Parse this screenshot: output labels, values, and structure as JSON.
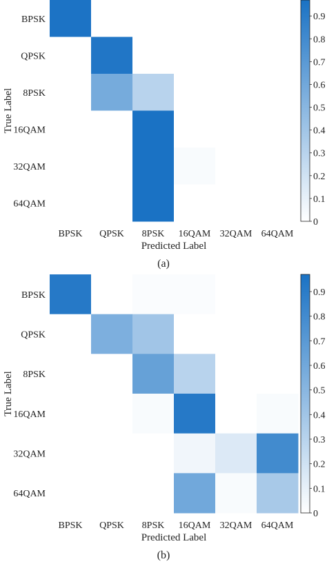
{
  "colors": {
    "low": "#ffffff",
    "high": "#1a72c4",
    "axis": "#222222"
  },
  "chart_data": [
    {
      "type": "heatmap",
      "caption": "(a)",
      "xlabel": "Predicted Label",
      "ylabel": "True Label",
      "x_categories": [
        "BPSK",
        "QPSK",
        "8PSK",
        "16QAM",
        "32QAM",
        "64QAM"
      ],
      "y_categories": [
        "BPSK",
        "QPSK",
        "8PSK",
        "16QAM",
        "32QAM",
        "64QAM"
      ],
      "matrix": [
        [
          0.96,
          0,
          0,
          0,
          0,
          0
        ],
        [
          0,
          0.94,
          0,
          0,
          0,
          0
        ],
        [
          0,
          0.58,
          0.3,
          0,
          0,
          0
        ],
        [
          0,
          0,
          0.97,
          0,
          0,
          0
        ],
        [
          0,
          0,
          0.97,
          0.03,
          0,
          0
        ],
        [
          0,
          0,
          0.97,
          0,
          0,
          0
        ]
      ],
      "colorbar": {
        "ticks": [
          0,
          0.1,
          0.2,
          0.3,
          0.4,
          0.5,
          0.6,
          0.7,
          0.8,
          0.9
        ],
        "tick_labels": [
          "0",
          "0.1",
          "0.2",
          "0.3",
          "0.4",
          "0.5",
          "0.6",
          "0.7",
          "0.8",
          "0.9"
        ],
        "range": [
          0,
          0.97
        ]
      }
    },
    {
      "type": "heatmap",
      "caption": "(b)",
      "xlabel": "Predicted Label",
      "ylabel": "True Label",
      "x_categories": [
        "BPSK",
        "QPSK",
        "8PSK",
        "16QAM",
        "32QAM",
        "64QAM"
      ],
      "y_categories": [
        "BPSK",
        "QPSK",
        "8PSK",
        "16QAM",
        "32QAM",
        "64QAM"
      ],
      "matrix": [
        [
          0.92,
          0,
          0.02,
          0.02,
          0,
          0
        ],
        [
          0,
          0.55,
          0.4,
          0,
          0,
          0
        ],
        [
          0,
          0,
          0.65,
          0.3,
          0,
          0
        ],
        [
          0,
          0,
          0.03,
          0.92,
          0,
          0.03
        ],
        [
          0,
          0,
          0,
          0.06,
          0.15,
          0.8
        ],
        [
          0,
          0,
          0,
          0.6,
          0.03,
          0.37
        ]
      ],
      "colorbar": {
        "ticks": [
          0,
          0.1,
          0.2,
          0.3,
          0.4,
          0.5,
          0.6,
          0.7,
          0.8,
          0.9
        ],
        "tick_labels": [
          "0",
          "0.1",
          "0.2",
          "0.3",
          "0.4",
          "0.5",
          "0.6",
          "0.7",
          "0.8",
          "0.9"
        ],
        "range": [
          0,
          0.97
        ]
      }
    }
  ]
}
